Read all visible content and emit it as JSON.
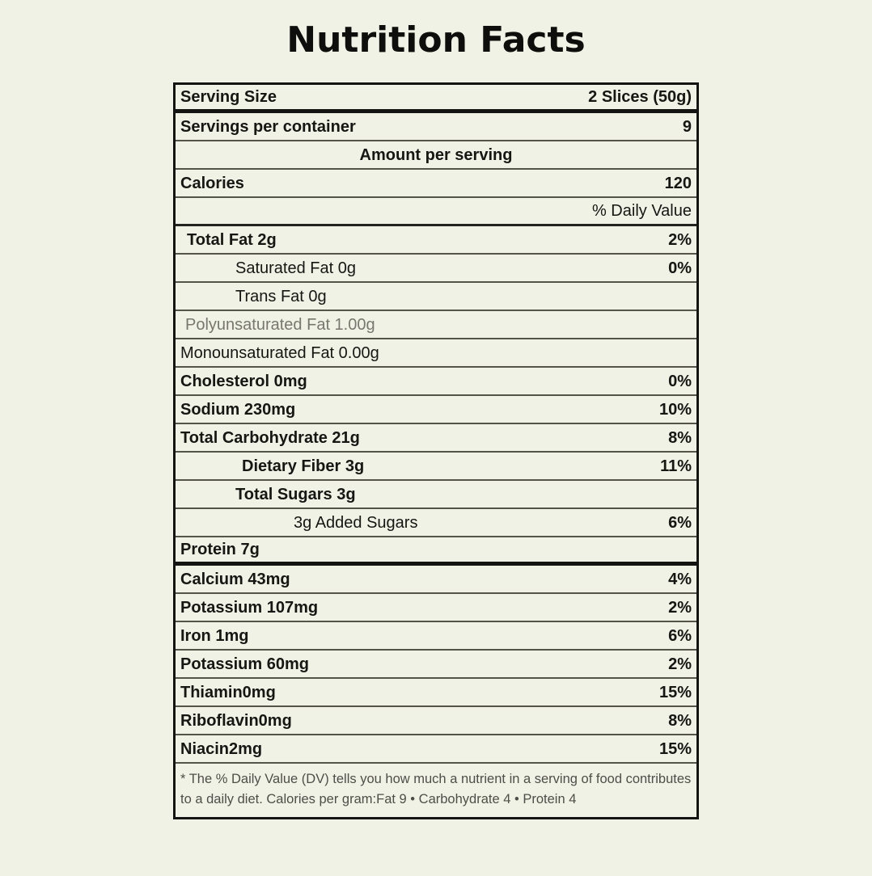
{
  "page": {
    "background_color": "#f1f2e6",
    "text_color": "#161613",
    "muted_text_color": "#77776f",
    "border_color": "#141412"
  },
  "title": "Nutrition Facts",
  "label": {
    "rows": [
      {
        "name": "serving-size",
        "label": "Serving Size",
        "value": "2 Slices (50g)",
        "label_bold": true,
        "value_bold": true,
        "indent": 0,
        "divider": "thick"
      },
      {
        "name": "servings-per-container",
        "label": "Servings per container",
        "value": "9",
        "label_bold": true,
        "value_bold": true,
        "indent": 0,
        "divider": "thin"
      },
      {
        "name": "amount-per-serving",
        "label": "Amount per serving",
        "label_bold": true,
        "center": true,
        "indent": 0,
        "divider": "thin"
      },
      {
        "name": "calories",
        "label": "Calories",
        "value": "120",
        "label_bold": true,
        "value_bold": true,
        "indent": 0,
        "divider": "thin"
      },
      {
        "name": "daily-value-header",
        "label": "",
        "value": "% Daily Value",
        "label_bold": false,
        "value_bold": false,
        "indent": 0,
        "divider": "medium"
      },
      {
        "name": "total-fat",
        "label": "Total Fat 2g",
        "value": "2%",
        "label_bold": true,
        "value_bold": true,
        "indent": 8,
        "divider": "thin"
      },
      {
        "name": "saturated-fat",
        "label": "Saturated Fat 0g",
        "value": "0%",
        "label_bold": false,
        "value_bold": true,
        "indent": 68,
        "divider": "thin"
      },
      {
        "name": "trans-fat",
        "label": "Trans Fat 0g",
        "label_bold": false,
        "indent": 68,
        "divider": "thin"
      },
      {
        "name": "polyunsaturated-fat",
        "label": "Polyunsaturated Fat 1.00g",
        "label_bold": false,
        "muted": true,
        "indent": 6,
        "divider": "thin"
      },
      {
        "name": "monounsaturated-fat",
        "label": "Monounsaturated Fat 0.00g",
        "label_bold": false,
        "indent": 0,
        "divider": "thin"
      },
      {
        "name": "cholesterol",
        "label": "Cholesterol 0mg",
        "value": "0%",
        "label_bold": true,
        "value_bold": true,
        "indent": 0,
        "divider": "thin"
      },
      {
        "name": "sodium",
        "label": "Sodium 230mg",
        "value": "10%",
        "label_bold": true,
        "value_bold": true,
        "indent": 0,
        "divider": "thin"
      },
      {
        "name": "total-carbohydrate",
        "label": "Total Carbohydrate 21g",
        "value": "8%",
        "label_bold": true,
        "value_bold": true,
        "indent": 0,
        "divider": "thin"
      },
      {
        "name": "dietary-fiber",
        "label": "Dietary Fiber 3g",
        "value": "11%",
        "label_bold": true,
        "value_bold": true,
        "indent": 76,
        "divider": "thin"
      },
      {
        "name": "total-sugars",
        "label": "Total Sugars 3g",
        "label_bold": true,
        "indent": 68,
        "divider": "thin"
      },
      {
        "name": "added-sugars",
        "label": "3g Added Sugars",
        "value": "6%",
        "label_bold": false,
        "value_bold": true,
        "indent": 140,
        "divider": "thin"
      },
      {
        "name": "protein",
        "label": "Protein 7g",
        "label_bold": true,
        "indent": 0,
        "divider": "thick"
      },
      {
        "name": "calcium",
        "label": "Calcium 43mg",
        "value": "4%",
        "label_bold": true,
        "value_bold": true,
        "indent": 0,
        "divider": "thin"
      },
      {
        "name": "potassium-107",
        "label": "Potassium 107mg",
        "value": "2%",
        "label_bold": true,
        "value_bold": true,
        "indent": 0,
        "divider": "thin"
      },
      {
        "name": "iron",
        "label": "Iron 1mg",
        "value": "6%",
        "label_bold": true,
        "value_bold": true,
        "indent": 0,
        "divider": "thin"
      },
      {
        "name": "potassium-60",
        "label": "Potassium 60mg",
        "value": "2%",
        "label_bold": true,
        "value_bold": true,
        "indent": 0,
        "divider": "thin"
      },
      {
        "name": "thiamin",
        "label": "Thiamin0mg",
        "value": "15%",
        "label_bold": true,
        "value_bold": true,
        "indent": 0,
        "divider": "thin"
      },
      {
        "name": "riboflavin",
        "label": "Riboflavin0mg",
        "value": "8%",
        "label_bold": true,
        "value_bold": true,
        "indent": 0,
        "divider": "thin"
      },
      {
        "name": "niacin",
        "label": "Niacin2mg",
        "value": "15%",
        "label_bold": true,
        "value_bold": true,
        "indent": 0,
        "divider": "thin"
      }
    ],
    "footnote": "* The % Daily Value (DV) tells you how much a nutrient in a serving of food contributes to a daily diet. Calories per gram:Fat 9 • Carbohydrate 4 • Protein 4"
  }
}
